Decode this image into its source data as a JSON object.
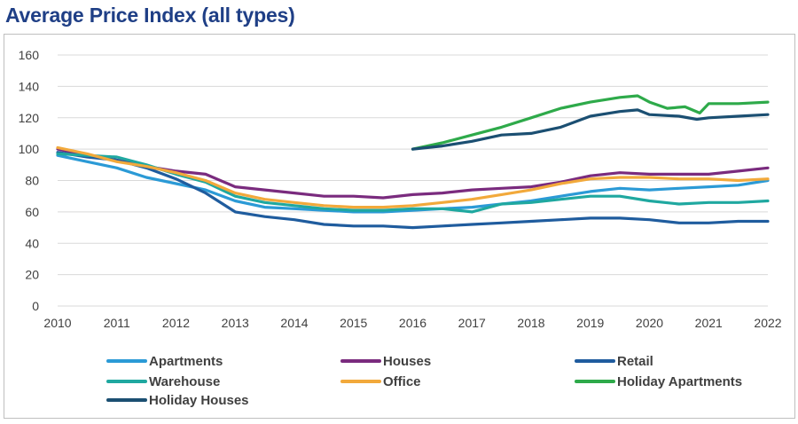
{
  "chart_data": {
    "type": "line",
    "title": "Average Price Index (all types)",
    "xlabel": "",
    "ylabel": "",
    "xlim": [
      2010,
      2022
    ],
    "ylim": [
      0,
      160
    ],
    "grid": true,
    "legend_position": "bottom",
    "x_ticks": [
      "2010",
      "2011",
      "2012",
      "2013",
      "2014",
      "2015",
      "2016",
      "2017",
      "2018",
      "2019",
      "2020",
      "2021",
      "2022"
    ],
    "y_ticks": [
      "0",
      "20",
      "40",
      "60",
      "80",
      "100",
      "120",
      "140",
      "160"
    ],
    "series": [
      {
        "name": "Apartments",
        "color": "#2b9ad6",
        "x": [
          2010,
          2010.5,
          2011,
          2011.5,
          2012,
          2012.5,
          2013,
          2013.5,
          2014,
          2014.5,
          2015,
          2015.5,
          2016,
          2016.5,
          2017,
          2017.5,
          2018,
          2018.5,
          2019,
          2019.5,
          2020,
          2020.5,
          2021,
          2021.5,
          2022
        ],
        "y": [
          96,
          92,
          88,
          82,
          78,
          74,
          67,
          63,
          62,
          61,
          60,
          60,
          61,
          62,
          63,
          65,
          67,
          70,
          73,
          75,
          74,
          75,
          76,
          77,
          80
        ]
      },
      {
        "name": "Houses",
        "color": "#7a2b7e",
        "x": [
          2010,
          2010.5,
          2011,
          2011.5,
          2012,
          2012.5,
          2013,
          2013.5,
          2014,
          2014.5,
          2015,
          2015.5,
          2016,
          2016.5,
          2017,
          2017.5,
          2018,
          2018.5,
          2019,
          2019.5,
          2020,
          2020.5,
          2021,
          2021.5,
          2022
        ],
        "y": [
          100,
          96,
          93,
          89,
          86,
          84,
          76,
          74,
          72,
          70,
          70,
          69,
          71,
          72,
          74,
          75,
          76,
          79,
          83,
          85,
          84,
          84,
          84,
          86,
          88
        ]
      },
      {
        "name": "Retail",
        "color": "#1f5c9e",
        "x": [
          2010,
          2010.5,
          2011,
          2011.5,
          2012,
          2012.5,
          2013,
          2013.5,
          2014,
          2014.5,
          2015,
          2015.5,
          2016,
          2016.5,
          2017,
          2017.5,
          2018,
          2018.5,
          2019,
          2019.5,
          2020,
          2020.5,
          2021,
          2021.5,
          2022
        ],
        "y": [
          98,
          95,
          93,
          88,
          81,
          72,
          60,
          57,
          55,
          52,
          51,
          51,
          50,
          51,
          52,
          53,
          54,
          55,
          56,
          56,
          55,
          53,
          53,
          54,
          54
        ]
      },
      {
        "name": "Warehouse",
        "color": "#1fa8a0",
        "x": [
          2010,
          2010.5,
          2011,
          2011.5,
          2012,
          2012.5,
          2013,
          2013.5,
          2014,
          2014.5,
          2015,
          2015.5,
          2016,
          2016.5,
          2017,
          2017.5,
          2018,
          2018.5,
          2019,
          2019.5,
          2020,
          2020.5,
          2021,
          2021.5,
          2022
        ],
        "y": [
          97,
          96,
          95,
          90,
          84,
          79,
          70,
          66,
          64,
          62,
          61,
          61,
          62,
          62,
          60,
          65,
          66,
          68,
          70,
          70,
          67,
          65,
          66,
          66,
          67
        ]
      },
      {
        "name": "Office",
        "color": "#f2a93b",
        "x": [
          2010,
          2010.5,
          2011,
          2011.5,
          2012,
          2012.5,
          2013,
          2013.5,
          2014,
          2014.5,
          2015,
          2015.5,
          2016,
          2016.5,
          2017,
          2017.5,
          2018,
          2018.5,
          2019,
          2019.5,
          2020,
          2020.5,
          2021,
          2021.5,
          2022
        ],
        "y": [
          101,
          97,
          92,
          89,
          85,
          80,
          72,
          68,
          66,
          64,
          63,
          63,
          64,
          66,
          68,
          71,
          74,
          78,
          81,
          82,
          82,
          81,
          81,
          80,
          81
        ]
      },
      {
        "name": "Holiday Apartments",
        "color": "#2eaa4a",
        "x": [
          2016,
          2016.5,
          2017,
          2017.5,
          2018,
          2018.5,
          2019,
          2019.5,
          2019.8,
          2020,
          2020.3,
          2020.6,
          2020.85,
          2021,
          2021.5,
          2022
        ],
        "y": [
          100,
          104,
          109,
          114,
          120,
          126,
          130,
          133,
          134,
          130,
          126,
          127,
          123,
          129,
          129,
          130
        ]
      },
      {
        "name": "Holiday Houses",
        "color": "#1b4f72",
        "x": [
          2016,
          2016.5,
          2017,
          2017.5,
          2018,
          2018.5,
          2019,
          2019.5,
          2019.8,
          2020,
          2020.5,
          2020.8,
          2021,
          2021.5,
          2022
        ],
        "y": [
          100,
          102,
          105,
          109,
          110,
          114,
          121,
          124,
          125,
          122,
          121,
          119,
          120,
          121,
          122
        ]
      }
    ]
  }
}
